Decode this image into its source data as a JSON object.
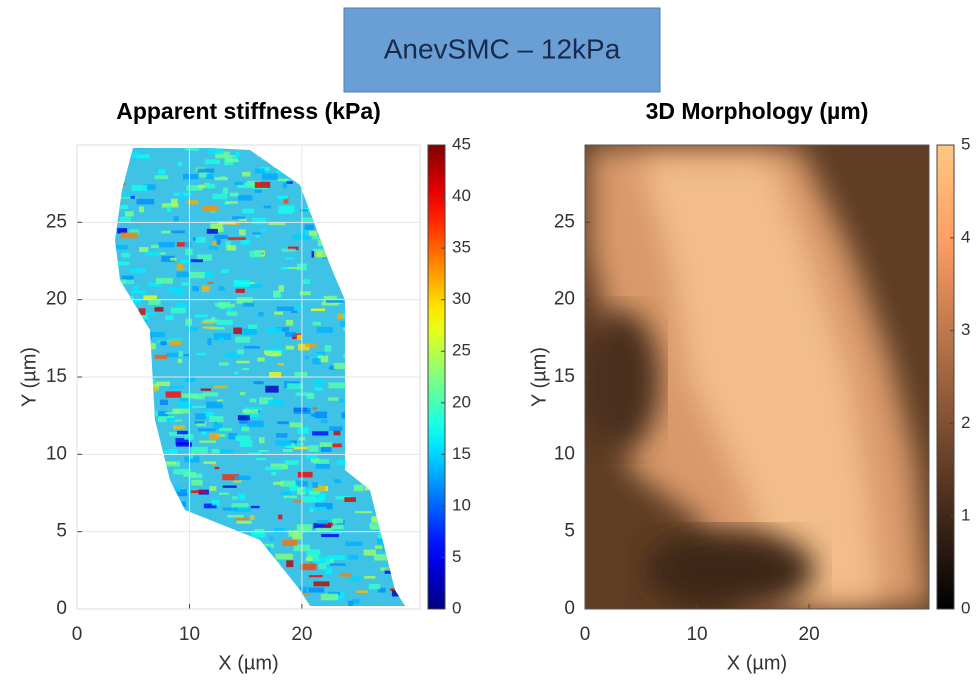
{
  "header": "AnevSMC – 12kPa",
  "chart_data": [
    {
      "type": "heatmap",
      "title": "Apparent stiffness (kPa)",
      "xlabel": "X (µm)",
      "ylabel": "Y (µm)",
      "xlim": [
        0,
        30.5
      ],
      "ylim": [
        0,
        30
      ],
      "xticks": [
        0,
        10,
        20
      ],
      "yticks": [
        0,
        5,
        10,
        15,
        20,
        25
      ],
      "colormap": "jet",
      "clim": [
        0,
        45
      ],
      "cticks": [
        0,
        5,
        10,
        15,
        20,
        25,
        30,
        35,
        40,
        45
      ],
      "grid": true
    },
    {
      "type": "heatmap",
      "title": "3D Morphology  (µm)",
      "xlabel": "X (µm)",
      "ylabel": "Y (µm)",
      "xlim": [
        0,
        30.7
      ],
      "ylim": [
        0,
        30
      ],
      "xticks": [
        0,
        10,
        20
      ],
      "yticks": [
        0,
        5,
        10,
        15,
        20,
        25
      ],
      "colormap": "copper",
      "clim": [
        0,
        5
      ],
      "cticks": [
        0,
        1,
        2,
        3,
        4,
        5
      ],
      "grid": false
    }
  ]
}
